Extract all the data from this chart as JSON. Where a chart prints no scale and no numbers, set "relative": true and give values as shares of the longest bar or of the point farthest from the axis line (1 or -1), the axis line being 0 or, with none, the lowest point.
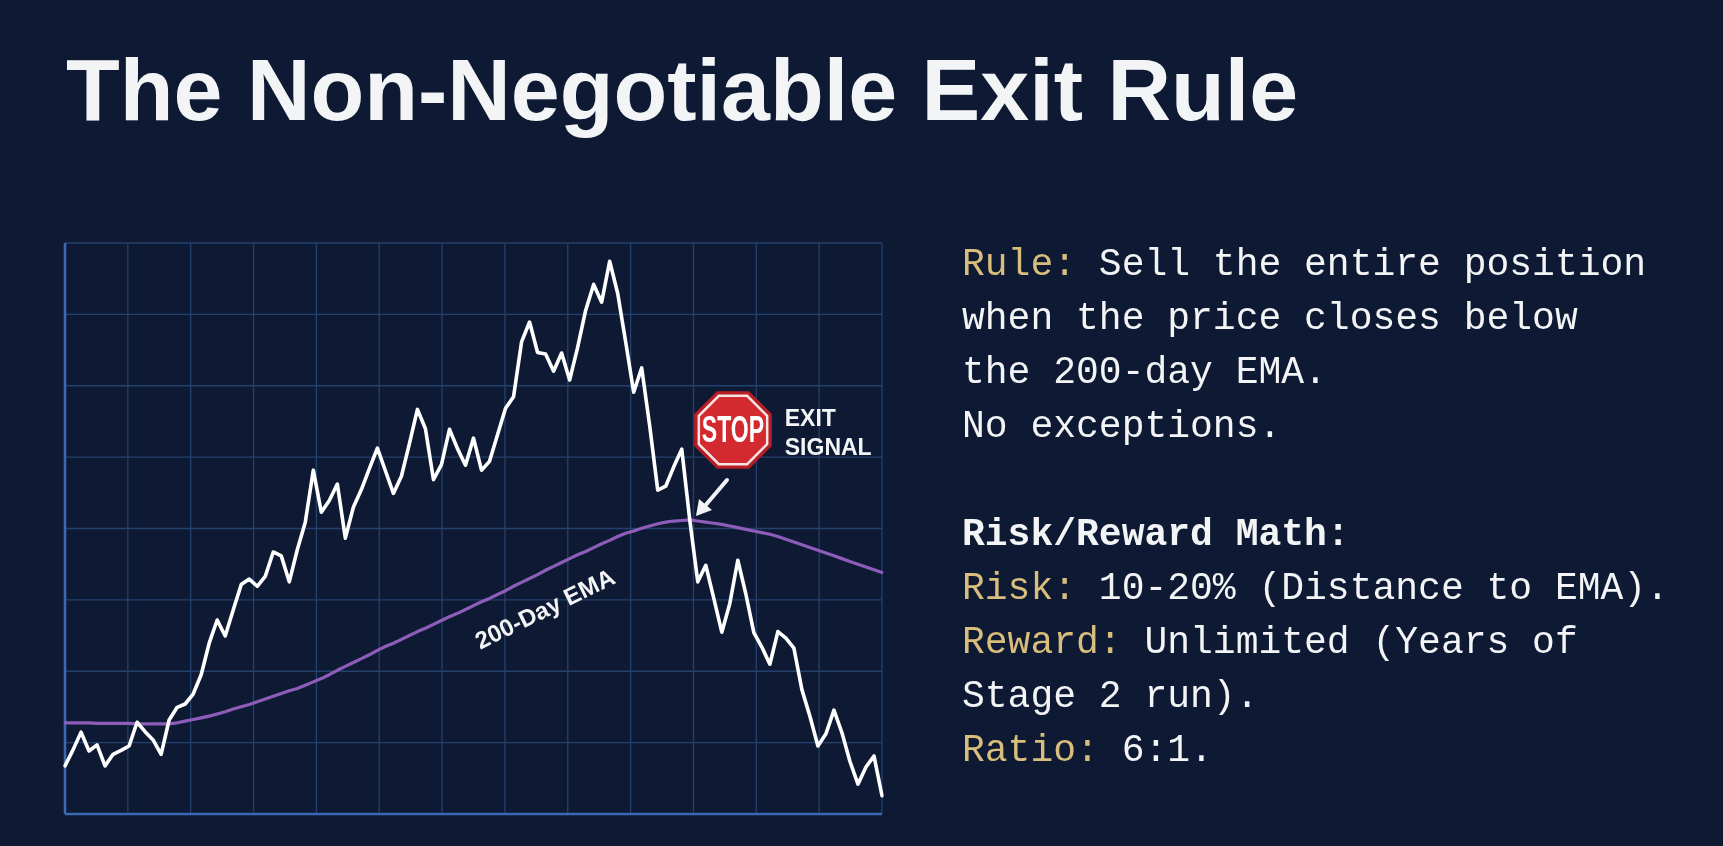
{
  "chart_data": {
    "type": "line",
    "title": "The Non-Negotiable Exit Rule",
    "categories": [
      null,
      null,
      null,
      null,
      null,
      null,
      null,
      null,
      null,
      null,
      null,
      null,
      null,
      null,
      null,
      null,
      null,
      null,
      null,
      null,
      null,
      null,
      null,
      null,
      null,
      null,
      null,
      null,
      null,
      null,
      null,
      null,
      null,
      null,
      null,
      null,
      null,
      null,
      null,
      null,
      null,
      null,
      null,
      null,
      null,
      null,
      null,
      null,
      null,
      null,
      null,
      null,
      null,
      null,
      null,
      null,
      null,
      null,
      null,
      null,
      null,
      null,
      null,
      null,
      null,
      null,
      null,
      null,
      null,
      null,
      null,
      null,
      null,
      null,
      null,
      null,
      null,
      null,
      null,
      null,
      null,
      null,
      null,
      null,
      null,
      null,
      null,
      null,
      null,
      null,
      null,
      null,
      null,
      null,
      null,
      null,
      null,
      null,
      null,
      null,
      null,
      null,
      null
    ],
    "series": [
      {
        "color": "#ffffff",
        "values": [
          0.087,
          0.116,
          0.148,
          0.114,
          0.125,
          0.087,
          0.108,
          0.115,
          0.123,
          0.166,
          0.149,
          0.134,
          0.108,
          0.17,
          0.193,
          0.199,
          0.217,
          0.252,
          0.309,
          0.351,
          0.322,
          0.369,
          0.415,
          0.425,
          0.412,
          0.43,
          0.474,
          0.467,
          0.42,
          0.478,
          0.528,
          0.622,
          0.546,
          0.567,
          0.597,
          0.499,
          0.555,
          0.587,
          0.625,
          0.662,
          0.621,
          0.58,
          0.611,
          0.67,
          0.732,
          0.697,
          0.605,
          0.632,
          0.696,
          0.661,
          0.631,
          0.68,
          0.622,
          0.638,
          0.686,
          0.734,
          0.755,
          0.854,
          0.89,
          0.835,
          0.832,
          0.801,
          0.834,
          0.785,
          0.844,
          0.911,
          0.958,
          0.926,
          1,
          0.942,
          0.854,
          0.763,
          0.807,
          0.702,
          0.586,
          0.593,
          0.628,
          0.66,
          0.532,
          0.42,
          0.45,
          0.39,
          0.329,
          0.381,
          0.459,
          0.398,
          0.328,
          0.302,
          0.271,
          0.33,
          0.318,
          0.3,
          0.225,
          0.177,
          0.123,
          0.145,
          0.188,
          0.147,
          0.095,
          0.054,
          0.085,
          0.105,
          0.033
        ]
      },
      {
        "name": "200-Day EMA",
        "color": "#8d5db9",
        "values": [
          0.165,
          0.165,
          0.165,
          0.165,
          0.164,
          0.164,
          0.164,
          0.164,
          0.164,
          0.163,
          0.163,
          0.163,
          0.163,
          0.163,
          0.165,
          0.168,
          0.171,
          0.174,
          0.177,
          0.181,
          0.185,
          0.19,
          0.194,
          0.198,
          0.203,
          0.208,
          0.213,
          0.218,
          0.223,
          0.227,
          0.233,
          0.239,
          0.245,
          0.252,
          0.26,
          0.267,
          0.274,
          0.281,
          0.288,
          0.296,
          0.303,
          0.309,
          0.316,
          0.323,
          0.33,
          0.336,
          0.343,
          0.35,
          0.357,
          0.363,
          0.37,
          0.377,
          0.384,
          0.39,
          0.397,
          0.404,
          0.412,
          0.419,
          0.426,
          0.433,
          0.441,
          0.448,
          0.455,
          0.462,
          0.469,
          0.475,
          0.482,
          0.489,
          0.495,
          0.502,
          0.508,
          0.512,
          0.517,
          0.521,
          0.525,
          0.528,
          0.53,
          0.531,
          0.532,
          0.53,
          0.528,
          0.526,
          0.524,
          0.521,
          0.518,
          0.515,
          0.512,
          0.509,
          0.506,
          0.502,
          0.497,
          0.492,
          0.487,
          0.482,
          0.477,
          0.472,
          0.467,
          0.462,
          0.457,
          0.452,
          0.447,
          0.442,
          0.437
        ]
      }
    ],
    "relative": true,
    "grid": true,
    "annotations": [
      "STOP",
      "EXIT SIGNAL",
      "Rule: Sell the entire position\nwhen the price closes below\nthe 200-day EMA.",
      "No exceptions.",
      "Risk/Reward Math:",
      "Risk: 10-20% (Distance to EMA).",
      "Reward: Unlimited (Years of\nStage 2 run).",
      "Ratio: 6:1."
    ]
  }
}
